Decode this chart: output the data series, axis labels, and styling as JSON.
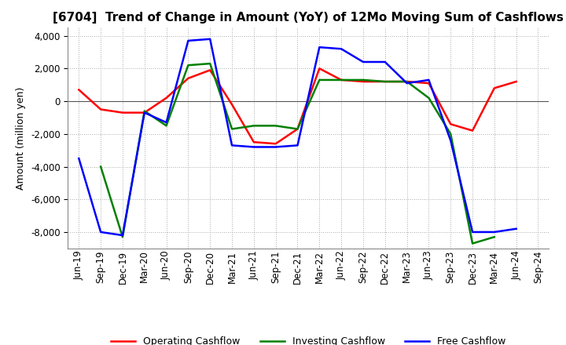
{
  "title": "[6704]  Trend of Change in Amount (YoY) of 12Mo Moving Sum of Cashflows",
  "ylabel": "Amount (million yen)",
  "ylim": [
    -9000,
    4500
  ],
  "yticks": [
    -8000,
    -6000,
    -4000,
    -2000,
    0,
    2000,
    4000
  ],
  "x_labels": [
    "Jun-19",
    "Sep-19",
    "Dec-19",
    "Mar-20",
    "Jun-20",
    "Sep-20",
    "Dec-20",
    "Mar-21",
    "Jun-21",
    "Sep-21",
    "Dec-21",
    "Mar-22",
    "Jun-22",
    "Sep-22",
    "Dec-22",
    "Mar-23",
    "Jun-23",
    "Sep-23",
    "Dec-23",
    "Mar-24",
    "Jun-24",
    "Sep-24"
  ],
  "operating": [
    700,
    -500,
    -700,
    -700,
    200,
    1400,
    1900,
    -200,
    -2500,
    -2600,
    -1700,
    2000,
    1300,
    1200,
    1200,
    1200,
    1100,
    -1400,
    -1800,
    800,
    1200,
    null
  ],
  "investing": [
    null,
    -4000,
    -8300,
    -600,
    -1500,
    2200,
    2300,
    -1700,
    -1500,
    -1500,
    -1700,
    1300,
    1300,
    1300,
    1200,
    1200,
    200,
    -2000,
    -8700,
    -8300,
    null,
    null
  ],
  "free": [
    -3500,
    -8000,
    -8200,
    -700,
    -1300,
    3700,
    3800,
    -2700,
    -2800,
    -2800,
    -2700,
    3300,
    3200,
    2400,
    2400,
    1100,
    1300,
    -2400,
    -8000,
    -8000,
    -7800,
    null
  ],
  "line_colors": {
    "operating": "#ff0000",
    "investing": "#008000",
    "free": "#0000ff"
  },
  "legend_labels": [
    "Operating Cashflow",
    "Investing Cashflow",
    "Free Cashflow"
  ],
  "bg_color": "#ffffff",
  "grid_color": "#aaaaaa",
  "title_fontsize": 11,
  "label_fontsize": 9,
  "tick_fontsize": 8.5
}
